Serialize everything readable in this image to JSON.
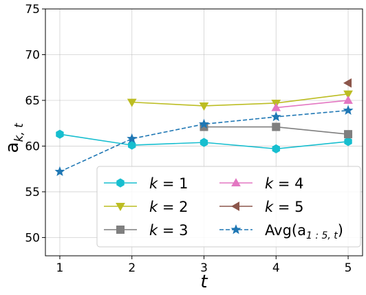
{
  "chart_data": {
    "type": "line",
    "title": "",
    "xlabel": "t",
    "ylabel": "a",
    "ylabel_subscript": "k, t",
    "x": [
      1,
      2,
      3,
      4,
      5
    ],
    "xlim": [
      0.8,
      5.2
    ],
    "ylim": [
      48,
      75
    ],
    "xticks": [
      "1",
      "2",
      "3",
      "4",
      "5"
    ],
    "yticks": [
      "50",
      "55",
      "60",
      "65",
      "70",
      "75"
    ],
    "ytick_values": [
      50,
      55,
      60,
      65,
      70,
      75
    ],
    "grid": true,
    "legend_position": "lower-right",
    "series": [
      {
        "name": "k = 1",
        "label_var": "k",
        "label_eq": " = 1",
        "color": "#17becf",
        "marker": "hexagon",
        "linestyle": "solid",
        "points": [
          [
            1,
            61.3
          ],
          [
            2,
            60.1
          ],
          [
            3,
            60.4
          ],
          [
            4,
            59.7
          ],
          [
            5,
            60.5
          ]
        ]
      },
      {
        "name": "k = 2",
        "label_var": "k",
        "label_eq": " = 2",
        "color": "#bcbd22",
        "marker": "triangle-down",
        "linestyle": "solid",
        "points": [
          [
            2,
            64.8
          ],
          [
            3,
            64.4
          ],
          [
            4,
            64.7
          ],
          [
            5,
            65.7
          ]
        ]
      },
      {
        "name": "k = 3",
        "label_var": "k",
        "label_eq": " = 3",
        "color": "#7f7f7f",
        "marker": "square",
        "linestyle": "solid",
        "points": [
          [
            3,
            62.1
          ],
          [
            4,
            62.1
          ],
          [
            5,
            61.3
          ]
        ]
      },
      {
        "name": "k = 4",
        "label_var": "k",
        "label_eq": " = 4",
        "color": "#e377c2",
        "marker": "triangle-up",
        "linestyle": "solid",
        "points": [
          [
            4,
            64.2
          ],
          [
            5,
            65.0
          ]
        ]
      },
      {
        "name": "k = 5",
        "label_var": "k",
        "label_eq": " = 5",
        "color": "#8c564b",
        "marker": "triangle-left",
        "linestyle": "solid",
        "points": [
          [
            5,
            66.9
          ]
        ]
      },
      {
        "name": "Avg(a1:5, t)",
        "label_main": "Avg(a",
        "label_sub": "1 : 5, t",
        "label_end": ")",
        "color": "#1f77b4",
        "marker": "star",
        "linestyle": "dashed",
        "points": [
          [
            1,
            57.2
          ],
          [
            2,
            60.8
          ],
          [
            3,
            62.4
          ],
          [
            4,
            63.2
          ],
          [
            5,
            63.9
          ]
        ]
      }
    ]
  }
}
